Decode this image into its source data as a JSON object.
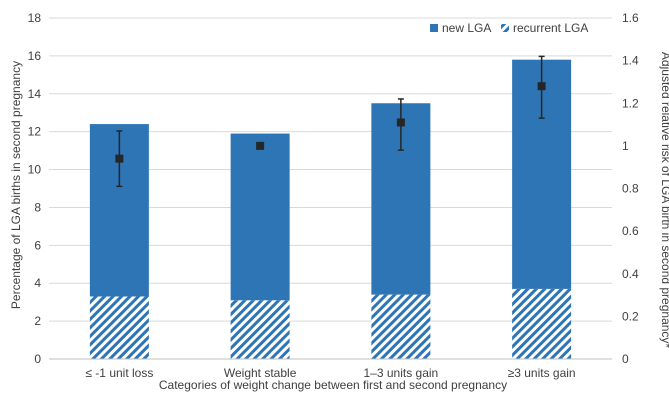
{
  "chart_data": {
    "type": "bar",
    "stacked": true,
    "categories": [
      "≤ -1 unit loss",
      "Weight stable",
      "1–3 units gain",
      "≥3 units gain"
    ],
    "series": [
      {
        "name": "recurrent LGA",
        "values": [
          3.3,
          3.1,
          3.4,
          3.7
        ],
        "color": "#2E75B6",
        "pattern": "diagonal-hatch"
      },
      {
        "name": "new LGA",
        "values": [
          9.1,
          8.8,
          10.1,
          12.1
        ],
        "color": "#2E75B6",
        "pattern": "solid"
      }
    ],
    "totals": [
      12.4,
      11.9,
      13.5,
      15.8
    ],
    "secondary_series": {
      "type": "point-with-error-bars",
      "marker": "square",
      "color": "#262626",
      "values": [
        0.94,
        1.0,
        1.11,
        1.28
      ],
      "lower": [
        0.81,
        null,
        0.98,
        1.13
      ],
      "upper": [
        1.07,
        null,
        1.22,
        1.42
      ]
    },
    "xlabel": "Categories of weight change between first and second pregnancy",
    "ylabel": "Percentage of LGA births in second pregnancy",
    "y2label": "Adjusted relative risk of LGA birth in second pregnancy*",
    "ylim": [
      0,
      18
    ],
    "y2lim": [
      0,
      1.6
    ],
    "yticks": [
      "0",
      "2",
      "4",
      "6",
      "8",
      "10",
      "12",
      "14",
      "16",
      "18"
    ],
    "y2ticks": [
      "0",
      "0.2",
      "0.4",
      "0.6",
      "0.8",
      "1",
      "1.2",
      "1.4",
      "1.6"
    ],
    "grid": true,
    "legend_position": "top-right",
    "legend": [
      "new LGA",
      "recurrent LGA"
    ]
  }
}
